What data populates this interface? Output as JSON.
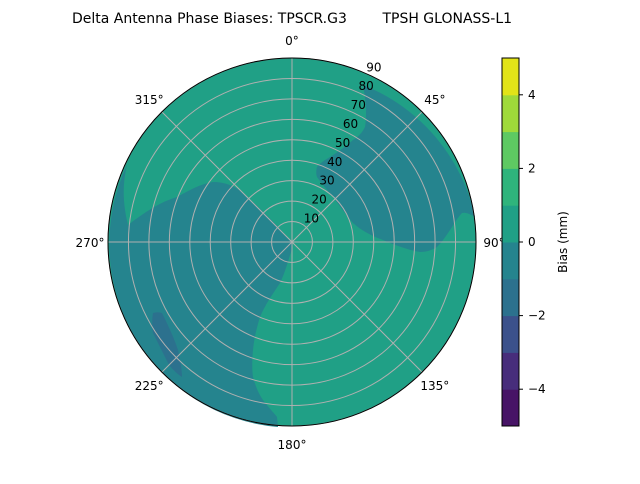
{
  "chart_data": {
    "type": "heatmap",
    "subtype": "polar filled contour",
    "title": "Delta Antenna Phase Biases: TPSCR.G3        TPSH GLONASS-L1",
    "angular_ticks": [
      "0°",
      "45°",
      "90°",
      "135°",
      "180°",
      "225°",
      "270°",
      "315°"
    ],
    "radial_ticks": [
      "10",
      "20",
      "30",
      "40",
      "50",
      "60",
      "70",
      "80",
      "90"
    ],
    "radial_range": [
      0,
      90
    ],
    "grid": true,
    "colorbar": {
      "label": "Bias (mm)",
      "range": [
        -5,
        5
      ],
      "levels": [
        -5,
        -4,
        -3,
        -2,
        -1,
        0,
        1,
        2,
        3,
        4,
        5
      ],
      "tick_values": [
        -4,
        -2,
        0,
        2,
        4
      ],
      "tick_labels": [
        "−4",
        "−2",
        "0",
        "2",
        "4"
      ],
      "colors": [
        "#471466",
        "#472d7b",
        "#3b518b",
        "#2c718e",
        "#25848e",
        "#20a086",
        "#2fb47c",
        "#5ec962",
        "#9fda3a",
        "#e2e418"
      ],
      "colormap": "viridis"
    },
    "regions": [
      {
        "level_range": [
          0,
          1
        ],
        "description_area": "background, north and south-east"
      },
      {
        "level_range": [
          -1,
          0
        ],
        "area": "west to south-southwest"
      },
      {
        "level_range": [
          -1,
          0
        ],
        "area": "north-east to east"
      },
      {
        "level_range": [
          -2,
          -1
        ],
        "area": "small patch near 235° at high zenith"
      }
    ]
  }
}
